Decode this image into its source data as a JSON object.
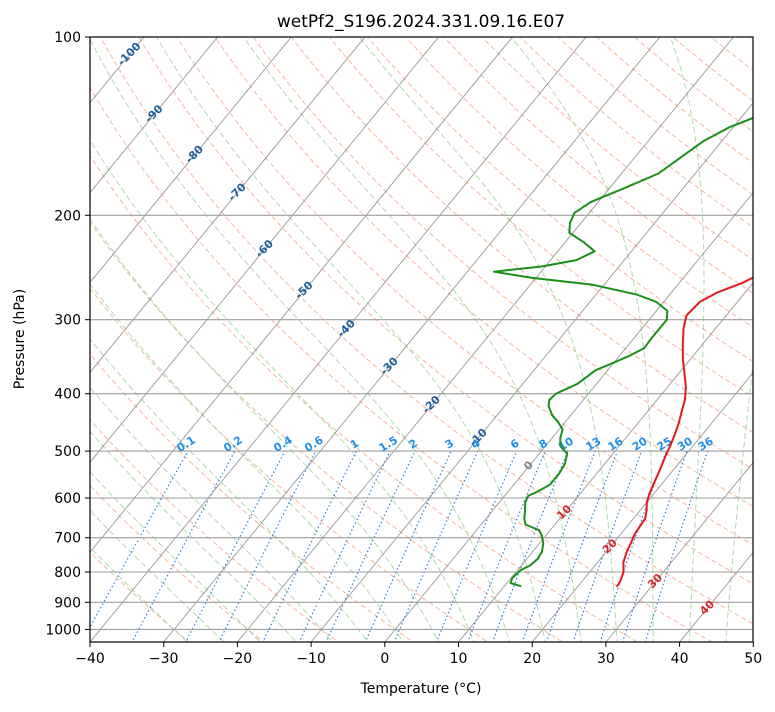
{
  "chart_data": {
    "type": "line",
    "title": "wetPf2_S196.2024.331.09.16.E07",
    "xlabel": "Temperature (°C)",
    "ylabel": "Pressure (hPa)",
    "xlim": [
      -40,
      50
    ],
    "ylim": [
      1050,
      100
    ],
    "y_scale": "log",
    "x_ticks": [
      -40,
      -30,
      -20,
      -10,
      0,
      10,
      20,
      30,
      40,
      50
    ],
    "y_ticks": [
      100,
      200,
      300,
      400,
      500,
      600,
      700,
      800,
      900,
      1000
    ],
    "grid": true,
    "series": [
      {
        "name": "",
        "role": "temperature",
        "color": "#e31a1c",
        "points": [
          [
            25.3,
            845
          ],
          [
            25.2,
            830
          ],
          [
            24.6,
            800
          ],
          [
            23.5,
            770
          ],
          [
            22.8,
            740
          ],
          [
            22.3,
            710
          ],
          [
            21.9,
            690
          ],
          [
            21.6,
            650
          ],
          [
            20.9,
            630
          ],
          [
            20.0,
            610
          ],
          [
            19.4,
            590
          ],
          [
            18.7,
            560
          ],
          [
            18.1,
            535
          ],
          [
            17.4,
            510
          ],
          [
            16.9,
            490
          ],
          [
            16.3,
            470
          ],
          [
            15.6,
            450
          ],
          [
            14.7,
            430
          ],
          [
            13.8,
            410
          ],
          [
            12.5,
            390
          ],
          [
            10.8,
            370
          ],
          [
            9.0,
            350
          ],
          [
            7.3,
            330
          ],
          [
            5.6,
            310
          ],
          [
            4.6,
            295
          ],
          [
            4.9,
            280
          ],
          [
            6.2,
            270
          ],
          [
            8.6,
            260
          ],
          [
            10.2,
            250
          ],
          [
            10.0,
            235
          ],
          [
            9.0,
            215
          ],
          [
            8.0,
            195
          ],
          [
            6.5,
            175
          ],
          [
            5.3,
            160
          ],
          [
            5.0,
            150
          ],
          [
            4.8,
            140
          ],
          [
            4.4,
            130
          ],
          [
            3.6,
            122
          ],
          [
            3.7,
            115
          ],
          [
            4.8,
            109
          ],
          [
            6.2,
            104
          ],
          [
            7.4,
            100
          ]
        ]
      },
      {
        "name": "",
        "role": "dewpoint",
        "color": "#1a8f1a",
        "points": [
          [
            12.2,
            845
          ],
          [
            10.5,
            835
          ],
          [
            10.2,
            820
          ],
          [
            10.4,
            795
          ],
          [
            11.2,
            780
          ],
          [
            11.5,
            760
          ],
          [
            11.3,
            740
          ],
          [
            10.5,
            715
          ],
          [
            9.5,
            695
          ],
          [
            8.5,
            680
          ],
          [
            6.0,
            665
          ],
          [
            5.2,
            650
          ],
          [
            4.4,
            630
          ],
          [
            3.5,
            610
          ],
          [
            3.2,
            595
          ],
          [
            4.0,
            585
          ],
          [
            4.9,
            570
          ],
          [
            4.9,
            545
          ],
          [
            4.6,
            525
          ],
          [
            3.8,
            505
          ],
          [
            2.0,
            490
          ],
          [
            1.1,
            475
          ],
          [
            0.5,
            460
          ],
          [
            -0.8,
            448
          ],
          [
            -2.5,
            435
          ],
          [
            -4.0,
            420
          ],
          [
            -4.6,
            410
          ],
          [
            -4.4,
            400
          ],
          [
            -2.6,
            385
          ],
          [
            -1.6,
            365
          ],
          [
            -0.1,
            355
          ],
          [
            1.4,
            345
          ],
          [
            2.5,
            335
          ],
          [
            2.4,
            325
          ],
          [
            2.4,
            312
          ],
          [
            2.4,
            300
          ],
          [
            1.5,
            290
          ],
          [
            -1.0,
            280
          ],
          [
            -4.5,
            272
          ],
          [
            -11.5,
            262
          ],
          [
            -20.5,
            255
          ],
          [
            -26.4,
            249
          ],
          [
            -20.5,
            244
          ],
          [
            -16.5,
            238
          ],
          [
            -15.0,
            230
          ],
          [
            -17.5,
            222
          ],
          [
            -20.5,
            214
          ],
          [
            -21.5,
            206
          ],
          [
            -22.0,
            198
          ],
          [
            -21.0,
            190
          ],
          [
            -18.0,
            180
          ],
          [
            -15.0,
            170
          ],
          [
            -13.8,
            160
          ],
          [
            -12.5,
            150
          ],
          [
            -10.5,
            142
          ],
          [
            -7.0,
            134
          ],
          [
            -3.0,
            126
          ],
          [
            -1.5,
            120
          ],
          [
            -0.5,
            114
          ],
          [
            0.2,
            109
          ],
          [
            0.9,
            104
          ],
          [
            2.2,
            100
          ]
        ]
      }
    ],
    "dry_adiabat_labels": [
      "-100",
      "-90",
      "-80",
      "-70",
      "-60",
      "-50",
      "-40",
      "-30",
      "-20",
      "-10",
      "0",
      "10",
      "20",
      "30",
      "40"
    ],
    "mixing_ratio_labels": [
      "0.1",
      "0.2",
      "0.4",
      "0.6",
      "1",
      "1.5",
      "2",
      "3",
      "4",
      "6",
      "8",
      "10",
      "13",
      "16",
      "20",
      "25",
      "30",
      "36"
    ],
    "colors": {
      "dry_adiabat": "#f4a98a",
      "moist_adiabat": "#9fd39f",
      "mixing_ratio": "#1f78d8",
      "isotherm": "#7f7f7f",
      "isobar": "#9e9e9e",
      "cold_label": "#1f5f9e",
      "warm_label": "#d62728",
      "mixing_label": "#1f8fe8"
    }
  }
}
